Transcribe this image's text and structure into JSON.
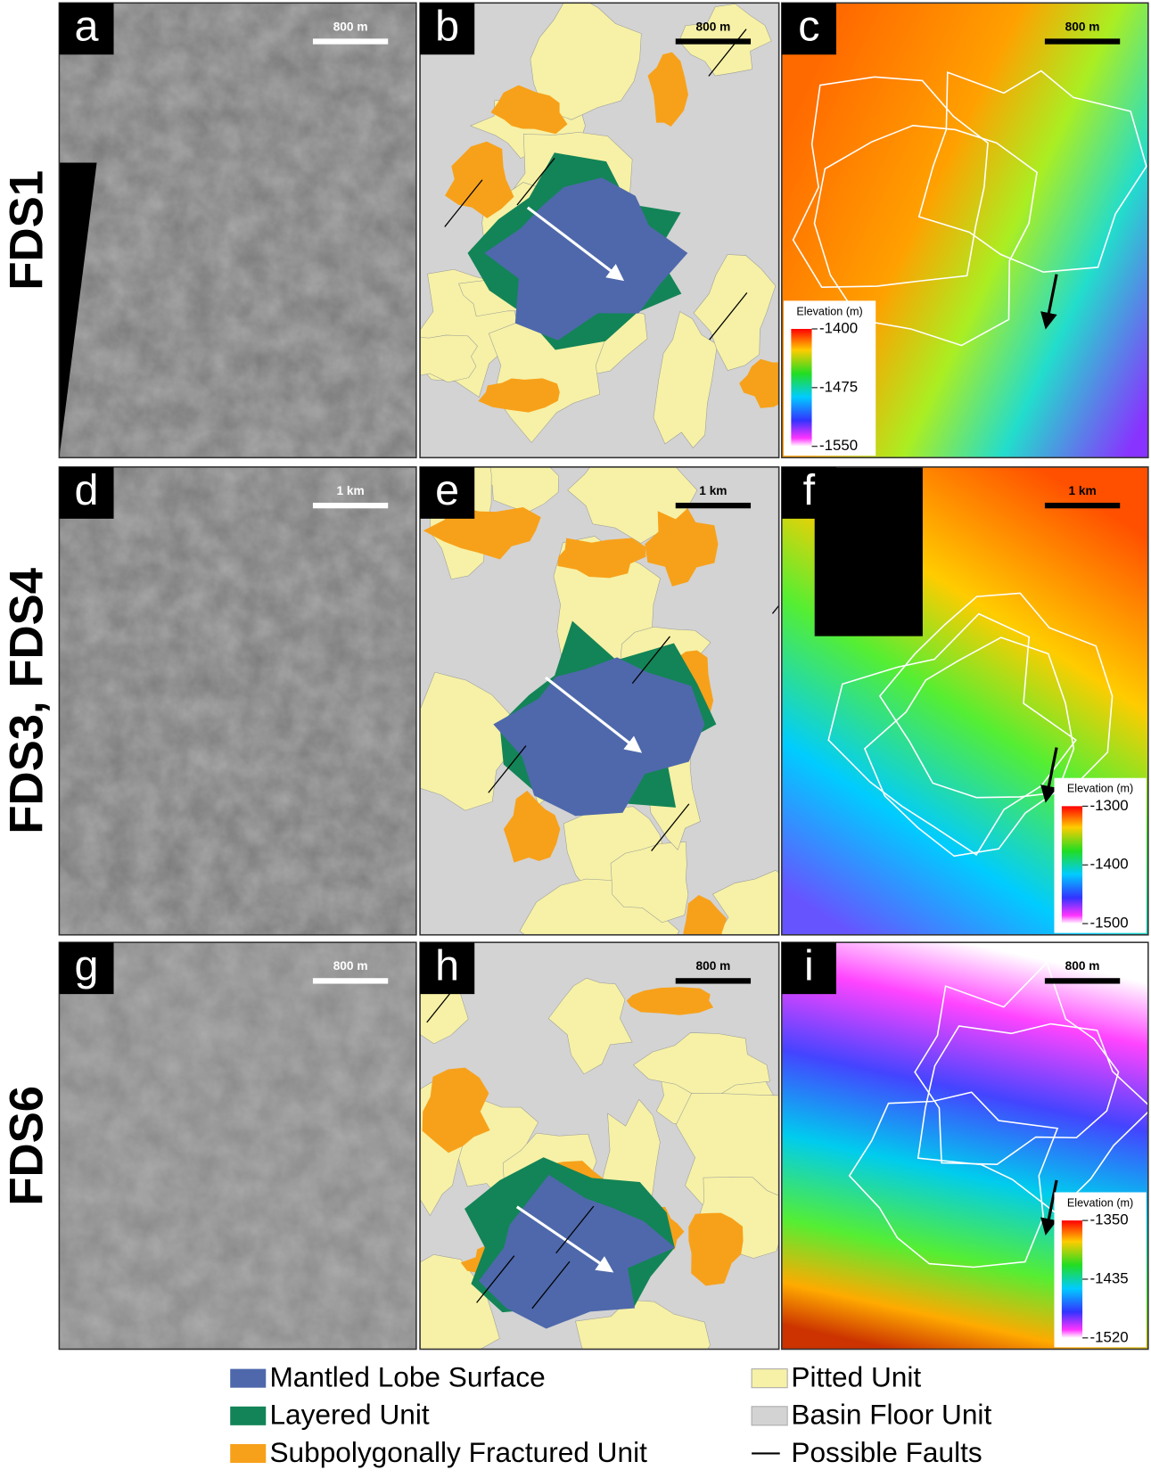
{
  "rows": [
    {
      "label": "FDS1",
      "panels": [
        {
          "letter": "a",
          "scale": "800 m"
        },
        {
          "letter": "b",
          "scale": "800 m"
        },
        {
          "letter": "c",
          "scale": "800 m",
          "colorbar": {
            "title": "Elevation (m)",
            "ticks": [
              -1400,
              -1475,
              -1550
            ]
          }
        }
      ]
    },
    {
      "label": "FDS3, FDS4",
      "panels": [
        {
          "letter": "d",
          "scale": "1 km"
        },
        {
          "letter": "e",
          "scale": "1 km"
        },
        {
          "letter": "f",
          "scale": "1 km",
          "colorbar": {
            "title": "Elevation (m)",
            "ticks": [
              -1300,
              -1400,
              -1500
            ]
          }
        }
      ]
    },
    {
      "label": "FDS6",
      "panels": [
        {
          "letter": "g",
          "scale": "800 m"
        },
        {
          "letter": "h",
          "scale": "800 m"
        },
        {
          "letter": "i",
          "scale": "800 m",
          "colorbar": {
            "title": "Elevation (m)",
            "ticks": [
              -1350,
              -1435,
              -1520
            ]
          }
        }
      ]
    }
  ],
  "legend": [
    {
      "label": "Mantled Lobe Surface",
      "color": "#4e68ab"
    },
    {
      "label": "Layered Unit",
      "color": "#138457"
    },
    {
      "label": "Subpolygonally Fractured Unit",
      "color": "#f7a11a"
    },
    {
      "label": "Pitted Unit",
      "color": "#f6f1a6"
    },
    {
      "label": "Basin Floor Unit",
      "color": "#d3d3d3"
    },
    {
      "label": "Possible Faults",
      "color": "#000000"
    }
  ]
}
